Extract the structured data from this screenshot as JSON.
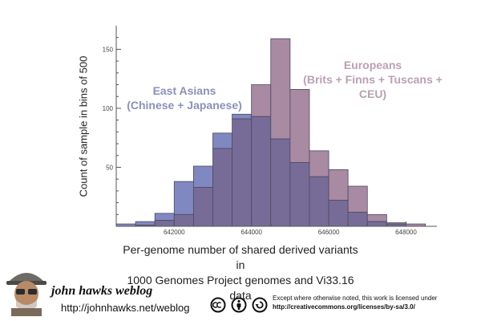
{
  "chart_data": {
    "type": "bar",
    "x_label_lines": [
      "Per-genome number of shared derived variants in",
      "1000 Genomes Project genomes and Vi33.16 data"
    ],
    "y_label": "Count of sample in bins of 500",
    "x_ticks": [
      "642000",
      "644000",
      "646000",
      "648000"
    ],
    "y_ticks": [
      "50",
      "100",
      "150"
    ],
    "xlim": [
      640500,
      648800
    ],
    "ylim": [
      0,
      170
    ],
    "bin_width": 500,
    "bin_starts": [
      640500,
      641000,
      641500,
      642000,
      642500,
      643000,
      643500,
      644000,
      644500,
      645000,
      645500,
      646000,
      646500,
      647000,
      647500,
      648000
    ],
    "series": [
      {
        "name": "East Asians (Chinese + Japanese)",
        "label_lines": [
          "East Asians",
          "(Chinese + Japanese)"
        ],
        "color": "#7f88c0",
        "values": [
          2,
          4,
          11,
          38,
          51,
          79,
          95,
          93,
          74,
          54,
          42,
          22,
          12,
          4,
          2,
          0
        ]
      },
      {
        "name": "Europeans (Brits + Finns + Tuscans + CEU)",
        "label_lines": [
          "Europeans",
          "(Brits + Finns + Tuscans + CEU)"
        ],
        "color": "#a88aa3",
        "values": [
          0,
          1,
          5,
          10,
          33,
          66,
          91,
          120,
          159,
          116,
          64,
          48,
          34,
          10,
          3,
          2
        ]
      }
    ],
    "overlap_color": "#776c98"
  },
  "footer": {
    "blog_title": "john hawks weblog",
    "blog_url": "http://johnhawks.net/weblog",
    "license_line1": "Except where otherwise noted, this work is licensed under",
    "license_url": "http://creativecommons.org/licenses/by-sa/3.0/"
  }
}
